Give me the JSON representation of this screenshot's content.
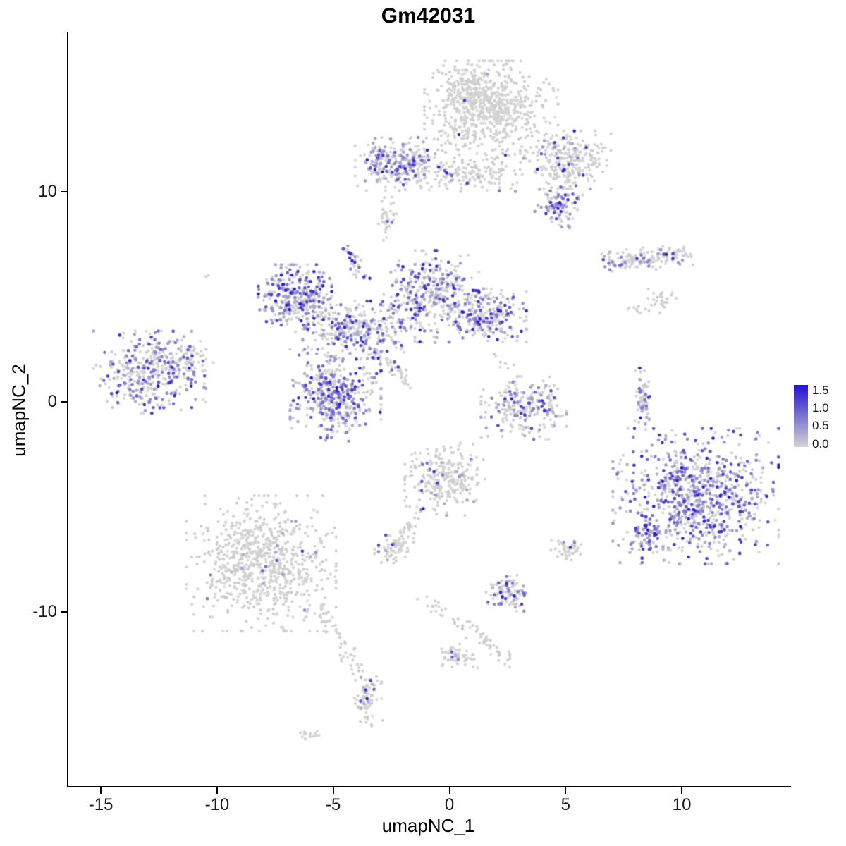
{
  "chart_data": {
    "type": "scatter",
    "title": "Gm42031",
    "xlabel": "umapNC_1",
    "ylabel": "umapNC_2",
    "xlim": [
      -16.4,
      14.7
    ],
    "ylim": [
      -18.3,
      17.6
    ],
    "x_ticks": [
      -15,
      -10,
      -5,
      0,
      5,
      10
    ],
    "y_ticks": [
      -10,
      0,
      10
    ],
    "grid": false,
    "legend_position": "right",
    "legend": {
      "values": [
        1.5,
        1.0,
        0.5,
        0.0
      ],
      "bar_range": [
        -0.08,
        1.65
      ]
    },
    "colors": {
      "low": "#d3d3d3",
      "high": "#2312d0",
      "background": "#ffffff",
      "axis": "#000000",
      "text": "#1a1a1a"
    },
    "point_radius": 2.1,
    "seed": 42,
    "clusters": [
      {
        "name": "top-main",
        "cx": 1.8,
        "cy": 13.8,
        "sx": 1.25,
        "sy": 1.05,
        "n": 620,
        "f": 0.012
      },
      {
        "name": "top-main-upper",
        "cx": 0.9,
        "cy": 14.8,
        "sx": 0.7,
        "sy": 0.55,
        "n": 150,
        "f": 0.007
      },
      {
        "name": "top-right-arm",
        "cx": 5.0,
        "cy": 11.5,
        "sx": 0.85,
        "sy": 0.6,
        "n": 280,
        "f": 0.1
      },
      {
        "name": "top-right-purple",
        "cx": 4.7,
        "cy": 9.4,
        "sx": 0.45,
        "sy": 0.5,
        "n": 90,
        "f": 0.55
      },
      {
        "name": "top-left-band",
        "cx": -2.1,
        "cy": 11.3,
        "sx": 0.85,
        "sy": 0.55,
        "n": 280,
        "f": 0.4
      },
      {
        "name": "band-connector",
        "cx": 0.6,
        "cy": 10.8,
        "sx": 1.1,
        "sy": 0.35,
        "n": 160,
        "f": 0.08
      },
      {
        "name": "band-dots",
        "cx": -2.7,
        "cy": 8.7,
        "sx": 0.22,
        "sy": 0.45,
        "n": 40,
        "f": 0.12
      },
      {
        "name": "right-thin-band",
        "cx": 6.7,
        "cy": 6.6,
        "cx2": 10.0,
        "cy2": 7.0,
        "sx": 0.3,
        "sy": 0.22,
        "n": 160,
        "f": 0.18
      },
      {
        "name": "right-small-below",
        "cx": 9.1,
        "cy": 4.8,
        "sx": 0.3,
        "sy": 0.25,
        "n": 28,
        "f": 0.05
      },
      {
        "name": "right-tiny",
        "cx": 8.0,
        "cy": 4.4,
        "sx": 0.15,
        "sy": 0.12,
        "n": 8,
        "f": 0
      },
      {
        "name": "central-left",
        "cx": -6.5,
        "cy": 4.9,
        "sx": 0.75,
        "sy": 0.7,
        "n": 340,
        "f": 0.5
      },
      {
        "name": "central-top",
        "cx": -0.8,
        "cy": 5.0,
        "sx": 0.9,
        "sy": 0.95,
        "n": 400,
        "f": 0.45
      },
      {
        "name": "central-right",
        "cx": 1.7,
        "cy": 4.1,
        "sx": 0.7,
        "sy": 0.55,
        "n": 220,
        "f": 0.4
      },
      {
        "name": "central-connector",
        "cx": -3.9,
        "cy": 3.4,
        "sx": 1.05,
        "sy": 0.6,
        "n": 320,
        "f": 0.32
      },
      {
        "name": "central-lower",
        "cx": -4.9,
        "cy": 0.3,
        "sx": 0.85,
        "sy": 0.95,
        "n": 430,
        "f": 0.5
      },
      {
        "name": "central-trail",
        "cx": -3.2,
        "cy": 2.4,
        "cx2": -1.6,
        "cy2": 0.8,
        "sx": 0.15,
        "sy": 0.15,
        "n": 50,
        "f": 0.22
      },
      {
        "name": "central-neck-up",
        "cx": -4.5,
        "cy": 7.4,
        "cx2": -3.7,
        "cy2": 5.9,
        "sx": 0.13,
        "sy": 0.13,
        "n": 40,
        "f": 0.35
      },
      {
        "name": "far-left",
        "cx": -12.9,
        "cy": 1.4,
        "sx": 1.05,
        "sy": 0.85,
        "n": 380,
        "f": 0.45
      },
      {
        "name": "far-left-bump",
        "cx": -11.2,
        "cy": 2.1,
        "sx": 0.45,
        "sy": 0.45,
        "n": 55,
        "f": 0.3
      },
      {
        "name": "mid-right",
        "cx": 3.2,
        "cy": -0.3,
        "sx": 0.8,
        "sy": 0.65,
        "n": 240,
        "f": 0.3
      },
      {
        "name": "thin-vertical",
        "cx": 8.3,
        "cy": 0.1,
        "sx": 0.14,
        "sy": 0.65,
        "n": 70,
        "f": 0.35
      },
      {
        "name": "big-right",
        "cx": 10.6,
        "cy": -4.5,
        "sx": 1.55,
        "sy": 1.4,
        "n": 850,
        "f": 0.55
      },
      {
        "name": "big-right-edge",
        "cx": 8.5,
        "cy": -6.4,
        "sx": 0.3,
        "sy": 0.55,
        "n": 60,
        "f": 0.85
      },
      {
        "name": "center-bottom",
        "cx": -0.2,
        "cy": -3.7,
        "sx": 0.75,
        "sy": 0.75,
        "n": 280,
        "f": 0.07
      },
      {
        "name": "tail-blob",
        "cx": -2.3,
        "cy": -6.9,
        "sx": 0.4,
        "sy": 0.35,
        "n": 70,
        "f": 0.1
      },
      {
        "name": "tail-line",
        "cx": -1.2,
        "cy": -5.0,
        "cx2": -2.0,
        "cy2": -6.4,
        "sx": 0.12,
        "sy": 0.12,
        "n": 22,
        "f": 0.05
      },
      {
        "name": "bottom-left-big",
        "cx": -8.1,
        "cy": -7.7,
        "sx": 1.4,
        "sy": 1.4,
        "n": 780,
        "f": 0.03
      },
      {
        "name": "bottom-left-tail",
        "cx": -5.8,
        "cy": -9.7,
        "cx2": -3.9,
        "cy2": -12.8,
        "sx": 0.22,
        "sy": 0.22,
        "n": 55,
        "f": 0.02
      },
      {
        "name": "bottom-center-small",
        "cx": 2.5,
        "cy": -9.1,
        "sx": 0.4,
        "sy": 0.38,
        "n": 100,
        "f": 0.3
      },
      {
        "name": "small-gray-right",
        "cx": 5.1,
        "cy": -7.0,
        "sx": 0.32,
        "sy": 0.25,
        "n": 45,
        "f": 0.04
      },
      {
        "name": "diag-line-bottom",
        "cx": -1.1,
        "cy": -9.3,
        "cx2": 2.7,
        "cy2": -12.4,
        "sx": 0.18,
        "sy": 0.18,
        "n": 65,
        "f": 0.01
      },
      {
        "name": "diag-blob",
        "cx": 0.3,
        "cy": -12.1,
        "sx": 0.4,
        "sy": 0.25,
        "n": 55,
        "f": 0.02
      },
      {
        "name": "bottom-small",
        "cx": -3.5,
        "cy": -14.2,
        "sx": 0.28,
        "sy": 0.6,
        "n": 85,
        "f": 0.12
      },
      {
        "name": "tiny-bottom",
        "cx": -5.9,
        "cy": -15.9,
        "sx": 0.28,
        "sy": 0.1,
        "n": 14,
        "f": 0
      },
      {
        "name": "lone-dot",
        "cx": -10.5,
        "cy": 6.0,
        "sx": 0.05,
        "sy": 0.05,
        "n": 2,
        "f": 0
      },
      {
        "name": "sparse-mid",
        "cx": 2.5,
        "cy": 1.8,
        "sx": 0.25,
        "sy": 0.6,
        "n": 12,
        "f": 0.1
      }
    ]
  }
}
